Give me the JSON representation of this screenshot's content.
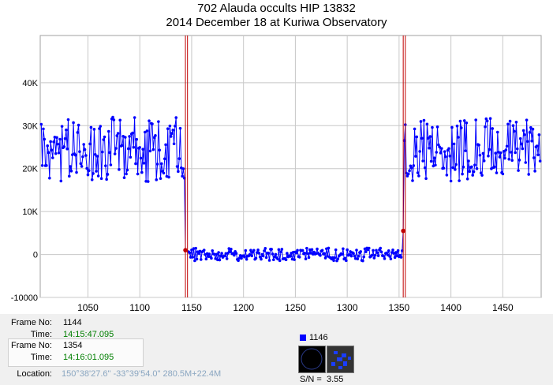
{
  "title": {
    "line1": "702 Alauda occults HIP 13832",
    "line2": "2014 December 18 at Kuriwa Observatory"
  },
  "colors": {
    "series": "#0000ff",
    "marker": "#c00000",
    "grid": "#c8c8c8",
    "green_text": "#007f00"
  },
  "chart_data": {
    "type": "line",
    "title": "702 Alauda occults HIP 13832 — 2014 December 18 at Kuriwa Observatory",
    "xlabel": "",
    "ylabel": "",
    "xlim": [
      1004,
      1487
    ],
    "ylim": [
      -10000,
      51000
    ],
    "x_ticks": [
      1050,
      1100,
      1150,
      1200,
      1250,
      1300,
      1350,
      1400,
      1450
    ],
    "x_tick_labels": [
      "1050",
      "1100",
      "1150",
      "1200",
      "1250",
      "1300",
      "1350",
      "1400",
      "1450"
    ],
    "y_ticks": [
      -10000,
      0,
      10000,
      20000,
      30000,
      40000
    ],
    "y_tick_labels": [
      "-10000",
      "0",
      "10K",
      "20K",
      "30K",
      "40K"
    ],
    "grid": true,
    "segments": [
      {
        "x_start": 1005,
        "x_end": 1143,
        "mean": 24500,
        "amplitude": 7500
      },
      {
        "x_start": 1147,
        "x_end": 1353,
        "mean": 0,
        "amplitude": 1500
      },
      {
        "x_start": 1355,
        "x_end": 1486,
        "mean": 24500,
        "amplitude": 7500
      }
    ],
    "highlight_points": [
      {
        "x": 1144,
        "y": 1000
      },
      {
        "x": 1354,
        "y": 5500
      }
    ],
    "markers_x": [
      1144,
      1146,
      1354,
      1356
    ],
    "series": [
      {
        "name": "1146",
        "values_ref": "segments"
      }
    ]
  },
  "info": {
    "frame1_label": "Frame No:",
    "frame1_value": "1144",
    "time1_label": "Time:",
    "time1_value": "14:15:47.095",
    "frame2_label": "Frame No:",
    "frame2_value": "1354",
    "time2_label": "Time:",
    "time2_value": "14:16:01.095",
    "location_label": "Location:",
    "location_value": "150°38'27.6\" -33°39'54.0\" 280.5M+22.4M",
    "legend_label": "1146",
    "sn_label": "S/N =",
    "sn_value": "3.55"
  }
}
